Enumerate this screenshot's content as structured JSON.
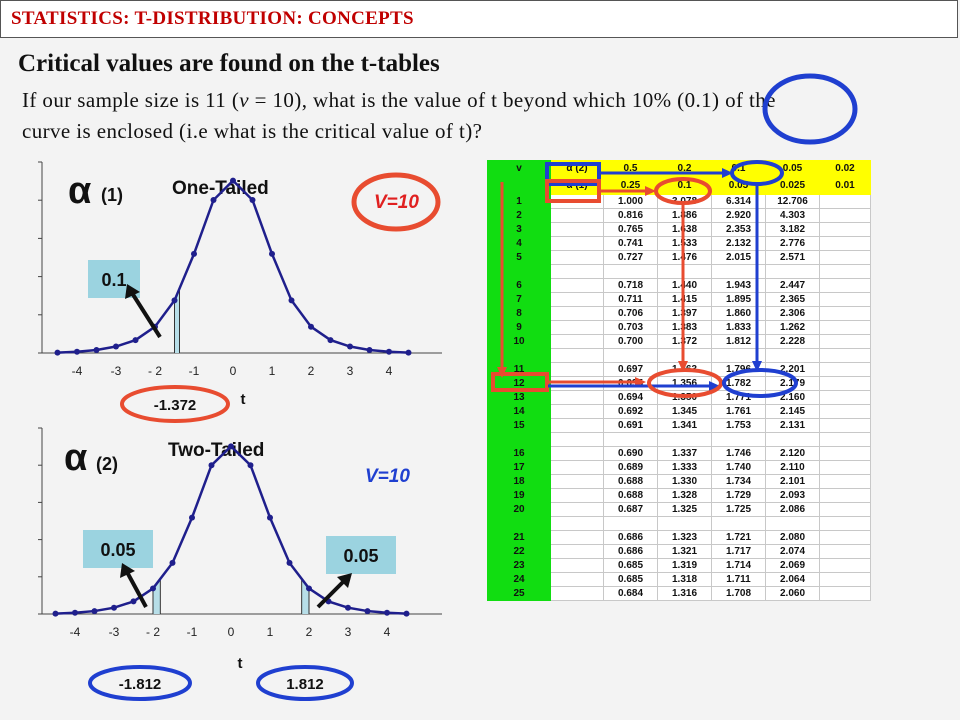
{
  "header": {
    "title": "STATISTICS: T-DISTRIBUTION: CONCEPTS"
  },
  "heading": "Critical values are found on the t-tables",
  "question": {
    "line1_a": "If our sample size is 11 (",
    "line1_var": "v",
    "line1_b": " = 10), what is the value of  t beyond which 10% (0.1) of  the",
    "line2": "curve is enclosed (i.e what is the critical value of  t)?"
  },
  "chart1": {
    "alpha_symbol": "α",
    "alpha_label": "(1)",
    "title": "One-Tailed",
    "v_label": "V=10",
    "tail_value": "0.1",
    "critical_label": "-1.372",
    "xlabel": "t",
    "tick_labels": [
      "-4",
      "-3",
      "- 2",
      "-1",
      "0",
      "1",
      "2",
      "3",
      "4"
    ]
  },
  "chart2": {
    "alpha_symbol": "α",
    "alpha_label": "(2)",
    "title": "Two-Tailed",
    "v_label": "V=10",
    "left_tail_value": "0.05",
    "right_tail_value": "0.05",
    "left_critical_label": "-1.812",
    "right_critical_label": "1.812",
    "xlabel": "t",
    "tick_labels": [
      "-4",
      "-3",
      "- 2",
      "-1",
      "0",
      "1",
      "2",
      "3",
      "4"
    ]
  },
  "chart_data": [
    {
      "type": "line",
      "title": "One-Tailed",
      "xlabel": "t",
      "x": [
        -4.5,
        -4,
        -3.5,
        -3,
        -2.5,
        -2,
        -1.5,
        -1,
        -0.5,
        0,
        0.5,
        1,
        1.5,
        2,
        2.5,
        3,
        3.5,
        4,
        4.5
      ],
      "series": [
        {
          "values": [
            0.001,
            0.003,
            0.007,
            0.015,
            0.03,
            0.061,
            0.122,
            0.23,
            0.355,
            0.4,
            0.355,
            0.23,
            0.122,
            0.061,
            0.03,
            0.015,
            0.007,
            0.003,
            0.001
          ]
        }
      ],
      "shaded_region": [
        -1.5,
        -1.372
      ],
      "ylim": [
        0,
        0.42
      ]
    },
    {
      "type": "line",
      "title": "Two-Tailed",
      "xlabel": "t",
      "x": [
        -4.5,
        -4,
        -3.5,
        -3,
        -2.5,
        -2,
        -1.5,
        -1,
        -0.5,
        0,
        0.5,
        1,
        1.5,
        2,
        2.5,
        3,
        3.5,
        4,
        4.5
      ],
      "series": [
        {
          "values": [
            0.001,
            0.003,
            0.007,
            0.015,
            0.03,
            0.061,
            0.122,
            0.23,
            0.355,
            0.4,
            0.355,
            0.23,
            0.122,
            0.061,
            0.03,
            0.015,
            0.007,
            0.003,
            0.001
          ]
        }
      ],
      "shaded_regions": [
        [
          -2,
          -1.812
        ],
        [
          1.812,
          2
        ]
      ],
      "ylim": [
        0,
        0.42
      ]
    }
  ],
  "table": {
    "v_header": "v",
    "alpha2_label": "α (2)",
    "alpha2_values": [
      "0.5",
      "0.2",
      "0.1",
      "0.05",
      "0.02"
    ],
    "alpha1_label": "α (1)",
    "alpha1_values": [
      "0.25",
      "0.1",
      "0.05",
      "0.025",
      "0.01"
    ],
    "rows": [
      [
        "1",
        "1.000",
        "3.078",
        "6.314",
        "12.706"
      ],
      [
        "2",
        "0.816",
        "1.886",
        "2.920",
        "4.303"
      ],
      [
        "3",
        "0.765",
        "1.638",
        "2.353",
        "3.182"
      ],
      [
        "4",
        "0.741",
        "1.533",
        "2.132",
        "2.776"
      ],
      [
        "5",
        "0.727",
        "1.476",
        "2.015",
        "2.571"
      ],
      [
        "",
        "",
        "",
        "",
        ""
      ],
      [
        "6",
        "0.718",
        "1.440",
        "1.943",
        "2.447"
      ],
      [
        "7",
        "0.711",
        "1.415",
        "1.895",
        "2.365"
      ],
      [
        "8",
        "0.706",
        "1.397",
        "1.860",
        "2.306"
      ],
      [
        "9",
        "0.703",
        "1.383",
        "1.833",
        "1.262"
      ],
      [
        "10",
        "0.700",
        "1.372",
        "1.812",
        "2.228"
      ],
      [
        "",
        "",
        "",
        "",
        ""
      ],
      [
        "11",
        "0.697",
        "1.363",
        "1.796",
        "2.201"
      ],
      [
        "12",
        "0.695",
        "1.356",
        "1.782",
        "2.179"
      ],
      [
        "13",
        "0.694",
        "1.350",
        "1.771",
        "2.160"
      ],
      [
        "14",
        "0.692",
        "1.345",
        "1.761",
        "2.145"
      ],
      [
        "15",
        "0.691",
        "1.341",
        "1.753",
        "2.131"
      ],
      [
        "",
        "",
        "",
        "",
        ""
      ],
      [
        "16",
        "0.690",
        "1.337",
        "1.746",
        "2.120"
      ],
      [
        "17",
        "0.689",
        "1.333",
        "1.740",
        "2.110"
      ],
      [
        "18",
        "0.688",
        "1.330",
        "1.734",
        "2.101"
      ],
      [
        "19",
        "0.688",
        "1.328",
        "1.729",
        "2.093"
      ],
      [
        "20",
        "0.687",
        "1.325",
        "1.725",
        "2.086"
      ],
      [
        "",
        "",
        "",
        "",
        ""
      ],
      [
        "21",
        "0.686",
        "1.323",
        "1.721",
        "2.080"
      ],
      [
        "22",
        "0.686",
        "1.321",
        "1.717",
        "2.074"
      ],
      [
        "23",
        "0.685",
        "1.319",
        "1.714",
        "2.069"
      ],
      [
        "24",
        "0.685",
        "1.318",
        "1.711",
        "2.064"
      ],
      [
        "25",
        "0.684",
        "1.316",
        "1.708",
        "2.060"
      ]
    ]
  },
  "colors": {
    "title_red": "#c00000",
    "curve_navy": "#1f1f8c",
    "shade_teal": "#b7dee8",
    "label_box": "#9bd3e0",
    "oval_red": "#e84c30",
    "oval_blue": "#1f3fd0",
    "table_green": "#11dd11",
    "table_yellow": "#ffff00"
  }
}
